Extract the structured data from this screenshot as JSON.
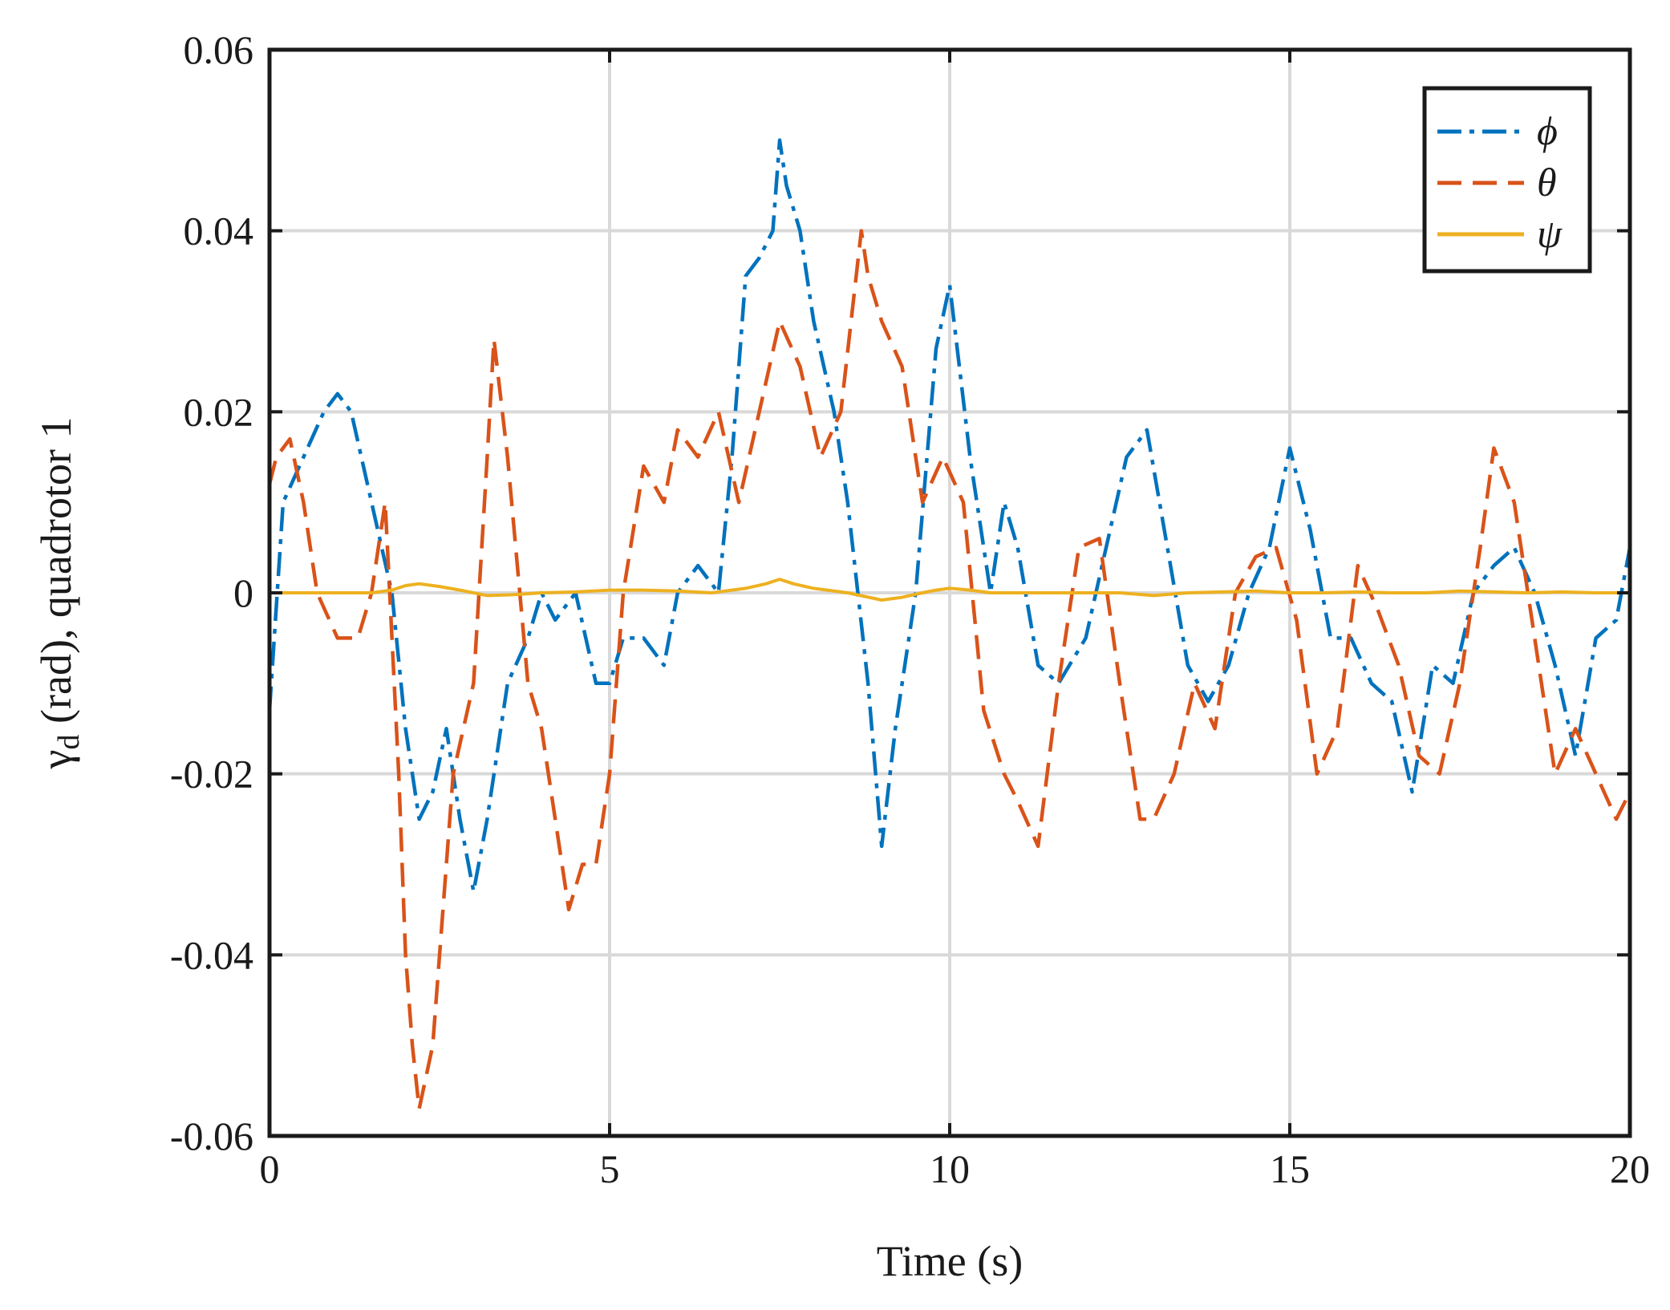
{
  "chart_data": {
    "type": "line",
    "title": "",
    "xlabel": "Time (s)",
    "ylabel_symbol": "γ",
    "ylabel_subscript": "d",
    "ylabel_rest": " (rad), quadrotor 1",
    "xlim": [
      0,
      20
    ],
    "ylim": [
      -0.06,
      0.06
    ],
    "xticks": [
      0,
      5,
      10,
      15,
      20
    ],
    "xtick_labels": [
      "0",
      "5",
      "10",
      "15",
      "20"
    ],
    "yticks": [
      -0.06,
      -0.04,
      -0.02,
      0,
      0.02,
      0.04,
      0.06
    ],
    "ytick_labels": [
      "-0.06",
      "-0.04",
      "-0.02",
      "0",
      "0.02",
      "0.04",
      "0.06"
    ],
    "grid": true,
    "legend_position": "top-right",
    "series": [
      {
        "name": "ϕ",
        "color": "#0072BD",
        "style": "dash-dot",
        "x": [
          0,
          0.2,
          0.5,
          0.8,
          1.0,
          1.2,
          1.5,
          1.8,
          2.0,
          2.2,
          2.4,
          2.6,
          2.8,
          3.0,
          3.2,
          3.5,
          3.8,
          4.0,
          4.2,
          4.5,
          4.8,
          5.0,
          5.2,
          5.5,
          5.8,
          6.0,
          6.3,
          6.6,
          6.8,
          7.0,
          7.2,
          7.4,
          7.5,
          7.6,
          7.8,
          8.0,
          8.3,
          8.5,
          8.8,
          9.0,
          9.2,
          9.5,
          9.8,
          10.0,
          10.3,
          10.6,
          10.8,
          11.0,
          11.3,
          11.6,
          12.0,
          12.3,
          12.6,
          12.9,
          13.2,
          13.5,
          13.8,
          14.1,
          14.4,
          14.7,
          15.0,
          15.3,
          15.6,
          15.9,
          16.2,
          16.5,
          16.8,
          17.1,
          17.4,
          17.7,
          18.0,
          18.3,
          18.6,
          18.9,
          19.2,
          19.5,
          19.8,
          20.0
        ],
        "values": [
          -0.013,
          0.01,
          0.015,
          0.02,
          0.022,
          0.02,
          0.01,
          0.0,
          -0.015,
          -0.025,
          -0.022,
          -0.015,
          -0.025,
          -0.033,
          -0.025,
          -0.01,
          -0.005,
          0.0,
          -0.003,
          0.0,
          -0.01,
          -0.01,
          -0.005,
          -0.005,
          -0.008,
          0.0,
          0.003,
          0.0,
          0.015,
          0.035,
          0.037,
          0.04,
          0.05,
          0.045,
          0.04,
          0.03,
          0.02,
          0.01,
          -0.01,
          -0.028,
          -0.015,
          0.0,
          0.027,
          0.034,
          0.015,
          0.0,
          0.01,
          0.005,
          -0.008,
          -0.01,
          -0.005,
          0.005,
          0.015,
          0.018,
          0.005,
          -0.008,
          -0.012,
          -0.008,
          0.0,
          0.005,
          0.016,
          0.007,
          -0.005,
          -0.005,
          -0.01,
          -0.012,
          -0.022,
          -0.008,
          -0.01,
          0.0,
          0.003,
          0.005,
          0.0,
          -0.008,
          -0.018,
          -0.005,
          -0.003,
          0.005
        ]
      },
      {
        "name": "θ",
        "color": "#D95319",
        "style": "dashed",
        "x": [
          0,
          0.1,
          0.3,
          0.5,
          0.7,
          1.0,
          1.3,
          1.5,
          1.7,
          1.9,
          2.0,
          2.1,
          2.2,
          2.4,
          2.7,
          3.0,
          3.2,
          3.3,
          3.5,
          3.8,
          4.0,
          4.2,
          4.4,
          4.6,
          4.8,
          5.0,
          5.2,
          5.5,
          5.8,
          6.0,
          6.3,
          6.6,
          6.9,
          7.2,
          7.5,
          7.8,
          8.1,
          8.4,
          8.7,
          8.8,
          9.0,
          9.3,
          9.6,
          9.9,
          10.2,
          10.5,
          10.8,
          11.0,
          11.3,
          11.6,
          11.9,
          12.2,
          12.5,
          12.8,
          13.0,
          13.3,
          13.6,
          13.9,
          14.2,
          14.5,
          14.8,
          15.1,
          15.4,
          15.7,
          16.0,
          16.3,
          16.6,
          16.9,
          17.2,
          17.5,
          17.8,
          18.0,
          18.3,
          18.6,
          18.9,
          19.2,
          19.5,
          19.8,
          20.0
        ],
        "values": [
          0.012,
          0.015,
          0.017,
          0.01,
          0.0,
          -0.005,
          -0.005,
          0.0,
          0.01,
          -0.02,
          -0.04,
          -0.05,
          -0.057,
          -0.05,
          -0.02,
          -0.01,
          0.015,
          0.028,
          0.015,
          -0.01,
          -0.015,
          -0.025,
          -0.035,
          -0.03,
          -0.03,
          -0.02,
          0.0,
          0.014,
          0.01,
          0.018,
          0.015,
          0.02,
          0.01,
          0.02,
          0.03,
          0.025,
          0.015,
          0.02,
          0.04,
          0.035,
          0.03,
          0.025,
          0.01,
          0.015,
          0.01,
          -0.013,
          -0.02,
          -0.023,
          -0.028,
          -0.01,
          0.005,
          0.006,
          -0.01,
          -0.025,
          -0.025,
          -0.02,
          -0.01,
          -0.015,
          0.0,
          0.004,
          0.005,
          -0.003,
          -0.02,
          -0.015,
          0.003,
          -0.002,
          -0.008,
          -0.018,
          -0.02,
          -0.01,
          0.005,
          0.016,
          0.01,
          -0.005,
          -0.02,
          -0.015,
          -0.02,
          -0.025,
          -0.022
        ]
      },
      {
        "name": "ψ",
        "color": "#EDB120",
        "style": "solid",
        "x": [
          0,
          0.5,
          1.0,
          1.5,
          1.8,
          2.0,
          2.2,
          2.5,
          2.8,
          3.2,
          3.6,
          4.0,
          4.5,
          5.0,
          5.5,
          6.0,
          6.5,
          7.0,
          7.3,
          7.5,
          7.7,
          8.0,
          8.5,
          9.0,
          9.3,
          9.6,
          9.8,
          10.0,
          10.3,
          10.6,
          11.0,
          11.5,
          12.0,
          12.5,
          13.0,
          13.5,
          14.0,
          14.5,
          15.0,
          15.5,
          16.0,
          16.5,
          17.0,
          17.5,
          18.0,
          18.5,
          19.0,
          19.5,
          20.0
        ],
        "values": [
          0.0,
          0.0,
          0.0,
          0.0,
          0.0003,
          0.0008,
          0.001,
          0.0007,
          0.0003,
          -0.0003,
          -0.0002,
          0.0,
          0.0001,
          0.0003,
          0.0003,
          0.0002,
          0.0,
          0.0005,
          0.001,
          0.0015,
          0.001,
          0.0005,
          0.0,
          -0.0008,
          -0.0005,
          0.0,
          0.0003,
          0.0005,
          0.0003,
          0.0,
          0.0,
          0.0,
          0.0,
          0.0,
          -0.0003,
          0.0,
          0.0001,
          0.0002,
          0.0,
          0.0,
          0.0001,
          0.0,
          0.0,
          0.0002,
          0.0001,
          0.0,
          0.0001,
          0.0,
          0.0
        ]
      }
    ]
  }
}
